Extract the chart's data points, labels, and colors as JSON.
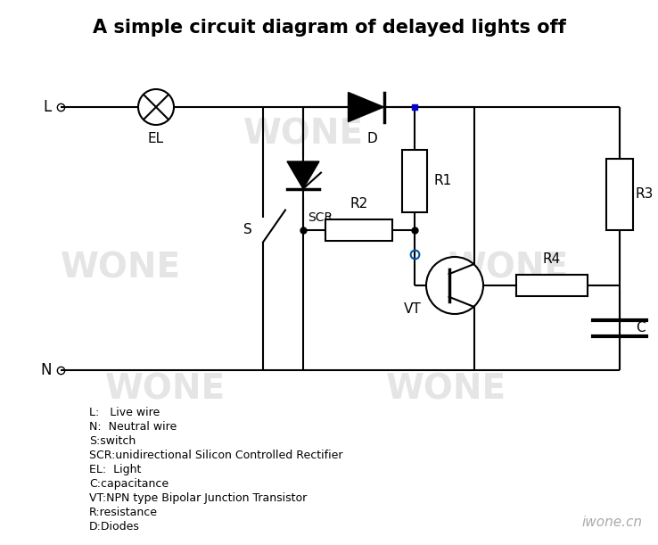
{
  "title": "A simple circuit diagram of delayed lights off",
  "title_fontsize": 15,
  "title_color": "#000000",
  "bg_color": "#ffffff",
  "line_color": "#000000",
  "line_width": 1.5,
  "watermark_text": "WONE",
  "watermark_color": "#d0d0d0",
  "watermark_fontsize": 28,
  "logo_text": "iwone.cn",
  "legend_lines": [
    "L:   Live wire",
    "N:  Neutral wire",
    "S:switch",
    "SCR:unidirectional Silicon Controlled Rectifier",
    "EL:  Light",
    "C:capacitance",
    "VT:NPN type Bipolar Junction Transistor",
    "R:resistance",
    "D:Diodes"
  ],
  "junction_blue": "#0000cc",
  "junction_open_color": "#0055aa"
}
